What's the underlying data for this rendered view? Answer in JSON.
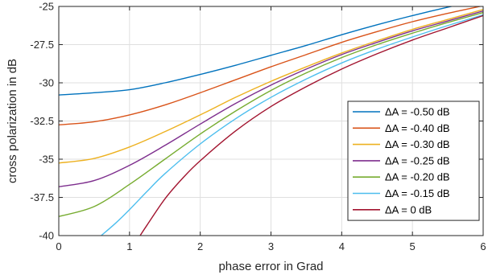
{
  "chart_data": {
    "type": "line",
    "xlabel": "phase error in Grad",
    "ylabel": "cross polarization in dB",
    "xlim": [
      0,
      6
    ],
    "ylim": [
      -40,
      -25
    ],
    "x_ticks": [
      "0",
      "1",
      "2",
      "3",
      "4",
      "5",
      "6"
    ],
    "y_ticks": [
      "-40",
      "-37.5",
      "-35",
      "-32.5",
      "-30",
      "-27.5",
      "-25"
    ],
    "grid": true,
    "legend_position": "right",
    "series": [
      {
        "name": "ΔA = -0.50 dB",
        "color": "#0072BD",
        "x": [
          0,
          0.5,
          1,
          1.5,
          2,
          2.5,
          3,
          3.5,
          4,
          4.5,
          5,
          5.5,
          6
        ],
        "y": [
          -30.8,
          -30.65,
          -30.45,
          -30.0,
          -29.45,
          -28.85,
          -28.2,
          -27.55,
          -26.85,
          -26.2,
          -25.6,
          -25.05,
          -24.55
        ]
      },
      {
        "name": "ΔA = -0.40 dB",
        "color": "#D95319",
        "x": [
          0,
          0.5,
          1,
          1.5,
          2,
          2.5,
          3,
          3.5,
          4,
          4.5,
          5,
          5.5,
          6
        ],
        "y": [
          -32.75,
          -32.55,
          -32.1,
          -31.45,
          -30.65,
          -29.8,
          -28.95,
          -28.15,
          -27.35,
          -26.65,
          -26.0,
          -25.45,
          -24.95
        ]
      },
      {
        "name": "ΔA = -0.30 dB",
        "color": "#EDB120",
        "x": [
          0,
          0.5,
          1,
          1.5,
          2,
          2.5,
          3,
          3.5,
          4,
          4.5,
          5,
          5.5,
          6
        ],
        "y": [
          -35.25,
          -34.95,
          -34.2,
          -33.2,
          -32.1,
          -30.95,
          -29.9,
          -28.95,
          -28.05,
          -27.25,
          -26.5,
          -25.85,
          -25.2
        ]
      },
      {
        "name": "ΔA = -0.25 dB",
        "color": "#7E2F8E",
        "x": [
          0,
          0.5,
          1,
          1.5,
          2,
          2.5,
          3,
          3.5,
          4,
          4.5,
          5,
          5.5,
          6
        ],
        "y": [
          -36.8,
          -36.4,
          -35.4,
          -34.1,
          -32.7,
          -31.35,
          -30.15,
          -29.1,
          -28.15,
          -27.35,
          -26.6,
          -25.95,
          -25.3
        ]
      },
      {
        "name": "ΔA = -0.20 dB",
        "color": "#77AC30",
        "x": [
          0,
          0.5,
          1,
          1.5,
          2,
          2.5,
          3,
          3.5,
          4,
          4.5,
          5,
          5.5,
          6
        ],
        "y": [
          -38.75,
          -38.1,
          -36.65,
          -35.0,
          -33.35,
          -31.85,
          -30.5,
          -29.35,
          -28.35,
          -27.5,
          -26.75,
          -26.05,
          -25.4
        ]
      },
      {
        "name": "ΔA = -0.15 dB",
        "color": "#4DBEEE",
        "x": [
          0.6,
          0.8,
          1.0,
          1.25,
          1.5,
          2,
          2.5,
          3,
          3.5,
          4,
          4.5,
          5,
          5.5,
          6
        ],
        "y": [
          -40.0,
          -39.2,
          -38.3,
          -37.1,
          -35.95,
          -34.0,
          -32.35,
          -30.95,
          -29.75,
          -28.7,
          -27.8,
          -27.0,
          -26.25,
          -25.55
        ]
      },
      {
        "name": "ΔA = 0 dB",
        "color": "#A2142F",
        "x": [
          1.15,
          1.25,
          1.5,
          1.75,
          2,
          2.5,
          3,
          3.5,
          4,
          4.5,
          5,
          5.5,
          6
        ],
        "y": [
          -40.0,
          -39.3,
          -37.6,
          -36.25,
          -35.1,
          -33.15,
          -31.55,
          -30.25,
          -29.1,
          -28.1,
          -27.2,
          -26.4,
          -25.6
        ]
      }
    ]
  }
}
